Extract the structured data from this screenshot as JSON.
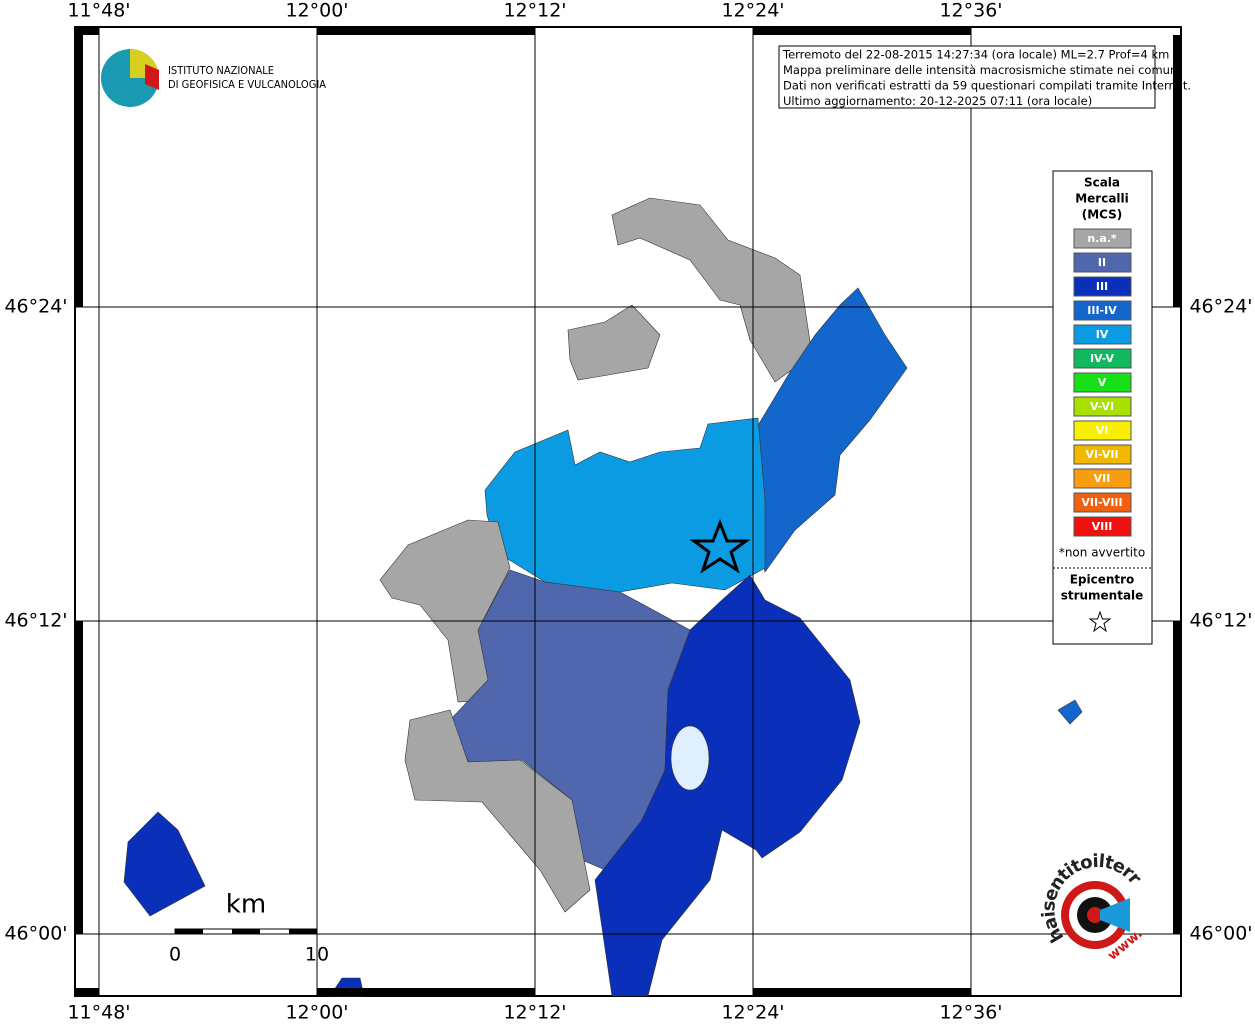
{
  "map": {
    "lon_labels": [
      "11°48'",
      "12°00'",
      "12°12'",
      "12°24'",
      "12°36'"
    ],
    "lat_labels": [
      "46°24'",
      "46°12'",
      "46°00'"
    ],
    "info": [
      "Terremoto del 22-08-2015 14:27:34 (ora locale) ML=2.7 Prof=4 km",
      "Mappa preliminare delle intensità macrosismiche stimate nei comuni",
      "Dati non verificati estratti da 59 questionari compilati tramite Internet.",
      "Ultimo aggiornamento: 20-12-2025 07:11 (ora locale)"
    ],
    "logo": [
      "ISTITUTO NAZIONALE",
      "DI GEOFISICA E VULCANOLOGIA"
    ],
    "legend": {
      "title": [
        "Scala",
        "Mercalli",
        "(MCS)"
      ],
      "classes": [
        {
          "label": "n.a.*",
          "color": "#a6a6a6"
        },
        {
          "label": "II",
          "color": "#5067ad"
        },
        {
          "label": "III",
          "color": "#0a2fb8"
        },
        {
          "label": "III-IV",
          "color": "#1266cc"
        },
        {
          "label": "IV",
          "color": "#0a9be2"
        },
        {
          "label": "IV-V",
          "color": "#12b860"
        },
        {
          "label": "V",
          "color": "#18e018"
        },
        {
          "label": "V-VI",
          "color": "#a8e000"
        },
        {
          "label": "VI",
          "color": "#f8f000"
        },
        {
          "label": "VI-VII",
          "color": "#f0b800"
        },
        {
          "label": "VII",
          "color": "#f89c10"
        },
        {
          "label": "VII-VIII",
          "color": "#f06010"
        },
        {
          "label": "VIII",
          "color": "#f01010"
        }
      ],
      "note": "*non avvertito",
      "epicenter": [
        "Epicentro",
        "strumentale"
      ]
    },
    "scale": {
      "unit": "km",
      "ticks": [
        0,
        10
      ]
    },
    "site_logo": {
      "name": "haisentitoilterremoto.it",
      "prefix": "www."
    }
  }
}
